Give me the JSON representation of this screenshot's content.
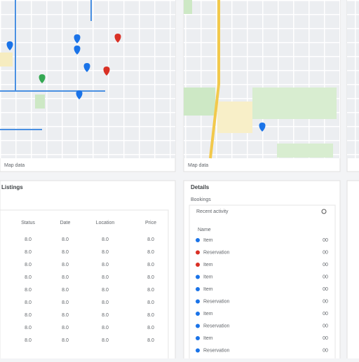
{
  "maps": [
    {
      "caption": "Map data"
    },
    {
      "caption": "Map data"
    }
  ],
  "listings": {
    "title": "Listings",
    "columns": [
      "Status",
      "Date",
      "Location",
      "Price"
    ],
    "rows": [
      [
        "8.0",
        "8.0",
        "8.0",
        "8.0"
      ],
      [
        "8.0",
        "8.0",
        "8.0",
        "8.0"
      ],
      [
        "8.0",
        "8.0",
        "8.0",
        "8.0"
      ],
      [
        "8.0",
        "8.0",
        "8.0",
        "8.0"
      ],
      [
        "8.0",
        "8.0",
        "8.0",
        "8.0"
      ],
      [
        "8.0",
        "8.0",
        "8.0",
        "8.0"
      ],
      [
        "8.0",
        "8.0",
        "8.0",
        "8.0"
      ],
      [
        "8.0",
        "8.0",
        "8.0",
        "8.0"
      ],
      [
        "8.0",
        "8.0",
        "8.0",
        "8.0"
      ]
    ]
  },
  "details": {
    "title": "Details",
    "subtitle": "Bookings",
    "section": "Recent activity",
    "header": "Name",
    "items": [
      {
        "name": "Item",
        "dot": "#1a73e8"
      },
      {
        "name": "Reservation",
        "dot": "#d93025"
      },
      {
        "name": "Item",
        "dot": "#d93025"
      },
      {
        "name": "Item",
        "dot": "#1a73e8"
      },
      {
        "name": "Item",
        "dot": "#1a73e8"
      },
      {
        "name": "Reservation",
        "dot": "#1a73e8"
      },
      {
        "name": "Item",
        "dot": "#1a73e8"
      },
      {
        "name": "Reservation",
        "dot": "#1a73e8"
      },
      {
        "name": "Item",
        "dot": "#1a73e8"
      },
      {
        "name": "Reservation",
        "dot": "#1a73e8"
      }
    ],
    "value": "00"
  }
}
